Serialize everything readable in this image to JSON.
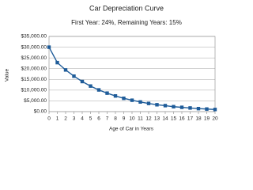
{
  "chart_data": {
    "type": "line",
    "title": "Car Depreciation Curve",
    "subtitle": "First Year: 24%, Remaining Years: 15%",
    "x_label": "Age of Car in Years",
    "y_label": "Value",
    "x": [
      0,
      1,
      2,
      3,
      4,
      5,
      6,
      7,
      8,
      9,
      10,
      11,
      12,
      13,
      14,
      15,
      16,
      17,
      18,
      19,
      20
    ],
    "series": [
      {
        "name": "Value",
        "color": "#1f5c99",
        "values": [
          30000,
          22800,
          19400,
          16500,
          14000,
          11900,
          10100,
          8600,
          7300,
          6200,
          5300,
          4500,
          3800,
          3200,
          2800,
          2300,
          2000,
          1700,
          1400,
          1200,
          1000
        ]
      }
    ],
    "xlim": [
      0,
      20
    ],
    "xticks": [
      0,
      1,
      2,
      3,
      4,
      5,
      6,
      7,
      8,
      9,
      10,
      11,
      12,
      13,
      14,
      15,
      16,
      17,
      18,
      19,
      20
    ],
    "ylim": [
      0,
      35000
    ],
    "yticks": [
      {
        "value": 0,
        "label": "$0.00"
      },
      {
        "value": 5000,
        "label": "$5,000.00"
      },
      {
        "value": 10000,
        "label": "$10,000.00"
      },
      {
        "value": 15000,
        "label": "$15,000.00"
      },
      {
        "value": 20000,
        "label": "$20,000.00"
      },
      {
        "value": 25000,
        "label": "$25,000.00"
      },
      {
        "value": 30000,
        "label": "$30,000.00"
      },
      {
        "value": 35000,
        "label": "$35,000.00"
      }
    ],
    "grid": true
  }
}
